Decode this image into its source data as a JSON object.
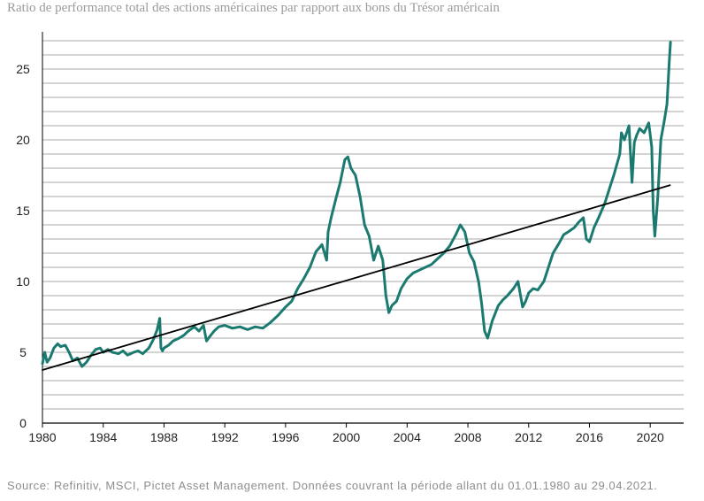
{
  "chart_data": {
    "type": "line",
    "title": "Ratio de performance total des actions américaines par rapport aux bons du Trésor américain",
    "xlabel": "",
    "ylabel": "",
    "xlim": [
      1980,
      2022.2
    ],
    "ylim": [
      0,
      27.5
    ],
    "x_ticks": [
      1980,
      1984,
      1988,
      1992,
      1996,
      2000,
      2004,
      2008,
      2012,
      2016,
      2020
    ],
    "x_tick_labels": [
      "1980",
      "1984",
      "1988",
      "1992",
      "1996",
      "2000",
      "2004",
      "2008",
      "2012",
      "2016",
      "2020"
    ],
    "y_ticks": [
      0,
      5,
      10,
      15,
      20,
      25
    ],
    "y_tick_labels": [
      "0",
      "5",
      "10",
      "15",
      "20",
      "25"
    ],
    "grid": "horizontal",
    "series": [
      {
        "color": "#1a7a70",
        "x": [
          1980.0,
          1980.15,
          1980.3,
          1980.5,
          1980.75,
          1981.0,
          1981.2,
          1981.5,
          1981.75,
          1982.0,
          1982.3,
          1982.6,
          1982.9,
          1983.2,
          1983.5,
          1983.8,
          1984.0,
          1984.3,
          1984.6,
          1985.0,
          1985.3,
          1985.6,
          1986.0,
          1986.3,
          1986.6,
          1987.0,
          1987.3,
          1987.55,
          1987.72,
          1987.8,
          1987.9,
          1988.0,
          1988.3,
          1988.6,
          1989.0,
          1989.3,
          1989.6,
          1990.0,
          1990.3,
          1990.6,
          1990.8,
          1991.0,
          1991.3,
          1991.6,
          1992.0,
          1992.5,
          1993.0,
          1993.5,
          1994.0,
          1994.5,
          1995.0,
          1995.5,
          1996.0,
          1996.4,
          1996.8,
          1997.2,
          1997.6,
          1998.0,
          1998.4,
          1998.7,
          1998.8,
          1999.0,
          1999.3,
          1999.6,
          1999.9,
          2000.1,
          2000.3,
          2000.6,
          2000.9,
          2001.2,
          2001.5,
          2001.8,
          2002.1,
          2002.4,
          2002.6,
          2002.8,
          2003.0,
          2003.3,
          2003.6,
          2004.0,
          2004.4,
          2004.8,
          2005.2,
          2005.6,
          2006.0,
          2006.4,
          2006.8,
          2007.2,
          2007.5,
          2007.8,
          2008.1,
          2008.4,
          2008.7,
          2008.9,
          2009.1,
          2009.3,
          2009.6,
          2010.0,
          2010.3,
          2010.6,
          2011.0,
          2011.3,
          2011.6,
          2011.8,
          2012.0,
          2012.3,
          2012.6,
          2013.0,
          2013.3,
          2013.6,
          2014.0,
          2014.3,
          2014.6,
          2015.0,
          2015.3,
          2015.6,
          2015.8,
          2016.0,
          2016.3,
          2016.6,
          2017.0,
          2017.3,
          2017.6,
          2018.0,
          2018.1,
          2018.3,
          2018.6,
          2018.8,
          2018.95,
          2019.1,
          2019.3,
          2019.6,
          2019.9,
          2020.1,
          2020.2,
          2020.3,
          2020.5,
          2020.7,
          2020.9,
          2021.1,
          2021.25,
          2021.33
        ],
        "values": [
          4.2,
          5.0,
          4.3,
          4.6,
          5.3,
          5.6,
          5.4,
          5.5,
          5.0,
          4.4,
          4.6,
          4.0,
          4.3,
          4.8,
          5.2,
          5.3,
          5.0,
          5.2,
          5.0,
          4.9,
          5.1,
          4.8,
          5.0,
          5.1,
          4.9,
          5.3,
          5.9,
          6.6,
          7.4,
          5.3,
          5.1,
          5.3,
          5.5,
          5.8,
          6.0,
          6.2,
          6.5,
          6.8,
          6.5,
          6.9,
          5.8,
          6.1,
          6.5,
          6.8,
          6.9,
          6.7,
          6.8,
          6.6,
          6.8,
          6.7,
          7.1,
          7.6,
          8.2,
          8.6,
          9.5,
          10.2,
          11.0,
          12.1,
          12.6,
          11.5,
          13.5,
          14.5,
          15.8,
          17.0,
          18.6,
          18.8,
          18.0,
          17.5,
          16.0,
          14.0,
          13.2,
          11.5,
          12.5,
          11.5,
          9.0,
          7.8,
          8.3,
          8.6,
          9.5,
          10.2,
          10.6,
          10.8,
          11.0,
          11.2,
          11.6,
          12.0,
          12.5,
          13.3,
          14.0,
          13.5,
          12.0,
          11.4,
          10.0,
          8.5,
          6.5,
          6.0,
          7.2,
          8.3,
          8.7,
          9.0,
          9.5,
          10.0,
          8.2,
          8.6,
          9.2,
          9.5,
          9.4,
          10.0,
          11.0,
          12.0,
          12.7,
          13.3,
          13.5,
          13.8,
          14.2,
          14.5,
          13.0,
          12.8,
          13.8,
          14.5,
          15.5,
          16.5,
          17.5,
          19.0,
          20.5,
          20.0,
          21.0,
          17.0,
          19.8,
          20.3,
          20.8,
          20.5,
          21.2,
          19.5,
          15.0,
          13.2,
          16.0,
          20.0,
          21.2,
          22.5,
          25.5,
          26.9
        ]
      },
      {
        "color": "#000000",
        "x": [
          1980.0,
          2021.3
        ],
        "values": [
          3.75,
          16.8
        ]
      }
    ],
    "legend": "none"
  },
  "source_text": "Source: Refinitiv, MSCI, Pictet Asset Management. Données couvrant la période allant du 01.01.1980 au 29.04.2021."
}
